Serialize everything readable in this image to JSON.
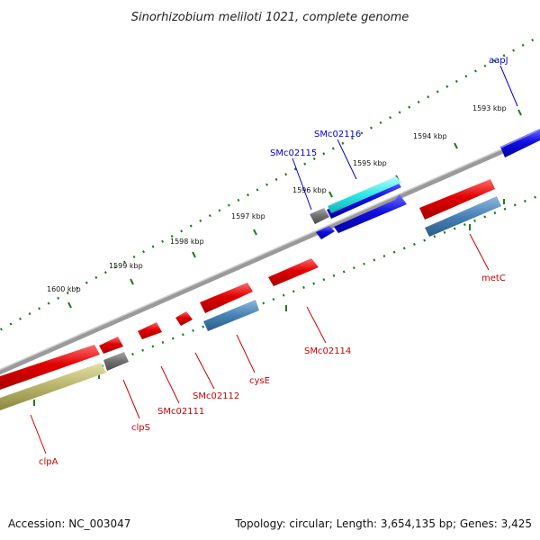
{
  "title": "Sinorhizobium meliloti 1021, complete genome",
  "footer": {
    "accession": "Accession: NC_003047",
    "summary": "Topology: circular; Length: 3,654,135 bp; Genes: 3,425"
  },
  "colors": {
    "backbone": "#888888",
    "tick": "#1f7a1f",
    "forward_cds": "#e00000",
    "forward_label": "#cc0000",
    "reverse_cds": "#1010e0",
    "reverse_label": "#0000cc",
    "highlight_cds": "#2ee6e6",
    "rna_steel": "#4682b4",
    "rna_olive": "#b8b36a",
    "other": "#707070"
  },
  "ticks": [
    {
      "label": "1593 kbp"
    },
    {
      "label": "1594 kbp"
    },
    {
      "label": "1595 kbp"
    },
    {
      "label": "1596 kbp"
    },
    {
      "label": "1597 kbp"
    },
    {
      "label": "1598 kbp"
    },
    {
      "label": "1599 kbp"
    },
    {
      "label": "1600 kbp"
    }
  ],
  "genes": [
    {
      "name": "aapJ",
      "strand": "reverse"
    },
    {
      "name": "SMc02116",
      "strand": "reverse"
    },
    {
      "name": "SMc02115",
      "strand": "reverse"
    },
    {
      "name": "metC",
      "strand": "forward"
    },
    {
      "name": "SMc02114",
      "strand": "forward"
    },
    {
      "name": "cysE",
      "strand": "forward"
    },
    {
      "name": "SMc02112",
      "strand": "forward"
    },
    {
      "name": "SMc02111",
      "strand": "forward"
    },
    {
      "name": "clpS",
      "strand": "forward"
    },
    {
      "name": "clpA",
      "strand": "forward"
    }
  ]
}
